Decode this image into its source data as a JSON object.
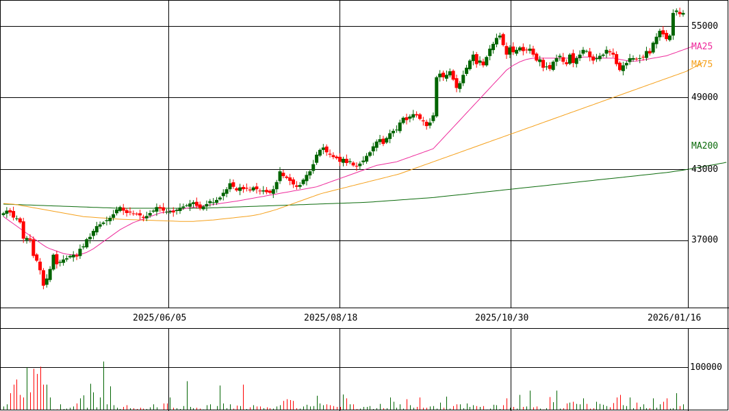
{
  "chart_data": {
    "type": "candlestick",
    "title": "",
    "price_axis": {
      "ticks": [
        55000,
        49000,
        43000,
        37000
      ],
      "range": [
        32400,
        57200
      ]
    },
    "volume_axis": {
      "ticks": [
        100000
      ],
      "range": [
        0,
        210000
      ]
    },
    "date_ticks": [
      "2025/06/05",
      "2025/08/18",
      "2025/10/30",
      "2026/01/16"
    ],
    "legend": [
      {
        "name": "MA25",
        "color": "#ee2a9b"
      },
      {
        "name": "MA75",
        "color": "#f5a01a"
      },
      {
        "name": "MA200",
        "color": "#0a6a0a"
      }
    ],
    "up_color": "#006400",
    "down_color": "#ff0000",
    "closes": [
      39280,
      39500,
      39350,
      38920,
      38850,
      38520,
      37150,
      37200,
      37050,
      35700,
      35300,
      34500,
      33200,
      33800,
      34600,
      35800,
      35000,
      35200,
      35400,
      35500,
      35700,
      35800,
      35650,
      36300,
      36500,
      37100,
      37300,
      37800,
      38200,
      38350,
      38500,
      38700,
      38900,
      39200,
      39600,
      39800,
      39500,
      39300,
      39350,
      39250,
      39200,
      39100,
      38900,
      39050,
      39300,
      39500,
      39800,
      39700,
      39500,
      39400,
      39450,
      39350,
      39550,
      39750,
      39850,
      39950,
      40100,
      40200,
      39900,
      39700,
      39850,
      40050,
      40300,
      40200,
      40400,
      40600,
      41000,
      41300,
      41800,
      41500,
      41200,
      41450,
      41300,
      41350,
      41200,
      41450,
      41300,
      41150,
      41200,
      41050,
      41000,
      41300,
      41900,
      42800,
      42400,
      42250,
      42000,
      41700,
      41500,
      41650,
      42100,
      42500,
      42800,
      43400,
      44200,
      44600,
      44800,
      44400,
      44200,
      44000,
      43900,
      43600,
      43850,
      43500,
      43650,
      43300,
      43200,
      43450,
      43700,
      44100,
      44400,
      44900,
      45300,
      45500,
      45100,
      45600,
      46000,
      46200,
      46300,
      46900,
      47300,
      47100,
      47400,
      47600,
      47500,
      47200,
      47000,
      46600,
      46900,
      47500,
      50700,
      51000,
      50700,
      50900,
      51200,
      50500,
      49800,
      50200,
      50900,
      51500,
      52100,
      52600,
      51800,
      52100,
      51700,
      52400,
      53100,
      53500,
      54000,
      54200,
      53400,
      52600,
      53200,
      52800,
      53000,
      53200,
      52900,
      53000,
      53100,
      52600,
      52100,
      52200,
      51500,
      51600,
      51400,
      52000,
      52300,
      52500,
      52000,
      51800,
      52600,
      51900,
      52300,
      52600,
      53000,
      52900,
      52400,
      52100,
      52300,
      52500,
      52600,
      53000,
      52800,
      52600,
      51800,
      51300,
      51700,
      51900,
      52300,
      52300,
      52200,
      52300,
      52400,
      52900,
      52700,
      53600,
      54100,
      54600,
      54300,
      53900,
      54200,
      56100,
      56300,
      56000,
      56100
    ],
    "volumes": [
      9000,
      14000,
      40000,
      60000,
      72000,
      36000,
      30000,
      100000,
      42000,
      97000,
      85000,
      102000,
      60000,
      60000,
      30000,
      2000,
      2500,
      14000,
      3000,
      4000,
      6000,
      9000,
      16000,
      28000,
      35000,
      6000,
      62000,
      42000,
      7000,
      30000,
      114000,
      14000,
      56000,
      12000,
      6000,
      3000,
      8000,
      12000,
      5000,
      5000,
      3000,
      6000,
      4000,
      3000,
      7000,
      14000,
      7000,
      1000,
      16000,
      16000,
      30000,
      6000,
      5000,
      3000,
      10000,
      68000,
      8000,
      5000,
      6000,
      4000,
      2000,
      12000,
      14000,
      2000,
      10000,
      58000,
      16000,
      5000,
      14000,
      4000,
      11000,
      10000,
      60000,
      3000,
      7000,
      12000,
      9000,
      9000,
      5000,
      7000,
      5000,
      4000,
      9000,
      12000,
      22000,
      26000,
      24000,
      22000,
      5000,
      4000,
      9000,
      13000,
      9000,
      10000,
      34000,
      16000,
      12000,
      14000,
      12000,
      10000,
      8000,
      8000,
      37000,
      28000,
      14000,
      14000,
      3000,
      4000,
      8000,
      8000,
      10000,
      3000,
      5000,
      15000,
      5000,
      5000,
      30000,
      20000,
      6000,
      14000,
      4000,
      26000,
      12000,
      6000,
      8000,
      30000,
      6000,
      6000,
      9000,
      10000,
      4000,
      18000,
      6000,
      32000,
      4000,
      10000,
      14000,
      14000,
      5000,
      16000,
      8000,
      12000,
      10000,
      8000,
      10000,
      2000,
      4000,
      13000,
      12000,
      3000,
      12000,
      28000,
      6000,
      8000,
      4000,
      36000,
      8000,
      9000,
      46000,
      7000,
      9000,
      4000,
      2000,
      5000,
      31000,
      19000,
      46000,
      4000,
      5000,
      16000,
      18000,
      20000,
      15000,
      14000,
      28000,
      15000,
      4000,
      5000,
      20000,
      15000,
      13000,
      10000,
      7000,
      17000,
      30000,
      36000,
      12000,
      10000,
      30000,
      5000,
      18000,
      8000,
      14000,
      5000,
      5000,
      28000,
      6000,
      14000,
      20000,
      28000,
      4000,
      5000,
      40000,
      10000,
      14000,
      6000,
      5000,
      15000,
      10000,
      22000,
      6000,
      6000,
      8000
    ],
    "ma25": [
      39000,
      38800,
      38600,
      38400,
      38200,
      38000,
      37800,
      37600,
      37400,
      37200,
      37000,
      36800,
      36600,
      36420,
      36300,
      36200,
      36100,
      36000,
      35900,
      35850,
      35820,
      35800,
      35800,
      35820,
      35900,
      36000,
      36150,
      36300,
      36500,
      36700,
      36900,
      37100,
      37300,
      37500,
      37700,
      37900,
      38050,
      38200,
      38350,
      38500,
      38600,
      38700,
      38800,
      38900,
      39000,
      39100,
      39200,
      39300,
      39350,
      39400,
      39450,
      39500,
      39550,
      39600,
      39650,
      39700,
      39740,
      39780,
      39820,
      39860,
      39900,
      39940,
      39980,
      40020,
      40060,
      40100,
      40140,
      40180,
      40220,
      40260,
      40300,
      40350,
      40400,
      40450,
      40500,
      40550,
      40600,
      40650,
      40700,
      40750,
      40800,
      40850,
      40900,
      40950,
      41000,
      41050,
      41100,
      41150,
      41200,
      41250,
      41300,
      41350,
      41400,
      41450,
      41500,
      41600,
      41700,
      41800,
      41900,
      42000,
      42100,
      42200,
      42300,
      42400,
      42500,
      42600,
      42700,
      42800,
      42900,
      43000,
      43100,
      43200,
      43300,
      43350,
      43400,
      43450,
      43500,
      43550,
      43600,
      43700,
      43800,
      43900,
      44000,
      44100,
      44200,
      44300,
      44400,
      44500,
      44600,
      44700,
      45000,
      45300,
      45600,
      45900,
      46200,
      46500,
      46800,
      47100,
      47400,
      47700,
      48000,
      48300,
      48600,
      48900,
      49200,
      49500,
      49800,
      50100,
      50400,
      50700,
      51000,
      51300,
      51500,
      51700,
      51850,
      52000,
      52100,
      52200,
      52250,
      52300,
      52300,
      52300,
      52300,
      52300,
      52300,
      52300,
      52300,
      52300,
      52300,
      52300,
      52300,
      52300,
      52300,
      52350,
      52400,
      52400,
      52400,
      52400,
      52350,
      52300,
      52300,
      52300,
      52300,
      52300,
      52250,
      52200,
      52150,
      52100,
      52050,
      52050,
      52050,
      52100,
      52150,
      52200,
      52250,
      52300,
      52350,
      52400,
      52450,
      52500,
      52600,
      52700,
      52800,
      52900,
      53000,
      53100,
      53200,
      53300
    ],
    "ma75": [
      40100,
      40080,
      40060,
      40040,
      40000,
      39950,
      39900,
      39850,
      39800,
      39750,
      39700,
      39650,
      39600,
      39550,
      39500,
      39450,
      39400,
      39350,
      39300,
      39250,
      39200,
      39150,
      39100,
      39050,
      39000,
      38980,
      38960,
      38940,
      38920,
      38900,
      38880,
      38860,
      38840,
      38820,
      38800,
      38780,
      38770,
      38760,
      38750,
      38740,
      38730,
      38720,
      38710,
      38700,
      38690,
      38680,
      38670,
      38660,
      38650,
      38640,
      38630,
      38620,
      38610,
      38600,
      38600,
      38600,
      38600,
      38600,
      38620,
      38640,
      38660,
      38680,
      38700,
      38720,
      38750,
      38780,
      38810,
      38840,
      38870,
      38900,
      38930,
      38960,
      38990,
      39020,
      39060,
      39100,
      39150,
      39200,
      39280,
      39360,
      39440,
      39520,
      39600,
      39700,
      39800,
      39900,
      40000,
      40100,
      40200,
      40300,
      40400,
      40500,
      40600,
      40700,
      40800,
      40900,
      40980,
      41050,
      41120,
      41190,
      41260,
      41330,
      41400,
      41470,
      41540,
      41610,
      41680,
      41750,
      41820,
      41890,
      41960,
      42030,
      42100,
      42170,
      42240,
      42310,
      42380,
      42450,
      42520,
      42600,
      42700,
      42800,
      42900,
      43000,
      43100,
      43200,
      43300,
      43400,
      43500,
      43600,
      43700,
      43800,
      43900,
      44000,
      44100,
      44200,
      44300,
      44400,
      44500,
      44600,
      44700,
      44800,
      44900,
      45000,
      45100,
      45200,
      45300,
      45400,
      45500,
      45600,
      45700,
      45800,
      45900,
      46000,
      46100,
      46200,
      46300,
      46400,
      46500,
      46600,
      46700,
      46800,
      46900,
      47000,
      47100,
      47200,
      47300,
      47400,
      47500,
      47600,
      47700,
      47800,
      47900,
      48000,
      48100,
      48200,
      48300,
      48400,
      48500,
      48600,
      48700,
      48800,
      48900,
      49000,
      49100,
      49200,
      49300,
      49400,
      49500,
      49600,
      49700,
      49800,
      49900,
      50000,
      50100,
      50200,
      50300,
      50400,
      50500,
      50600,
      50700,
      50800,
      50900,
      51000,
      51100,
      51200,
      51350,
      51500,
      51650,
      51800,
      51950
    ],
    "ma200": [
      40050,
      40040,
      40030,
      40020,
      40010,
      40000,
      39990,
      39980,
      39970,
      39960,
      39950,
      39940,
      39930,
      39920,
      39910,
      39900,
      39890,
      39880,
      39870,
      39860,
      39850,
      39840,
      39830,
      39820,
      39810,
      39800,
      39790,
      39780,
      39770,
      39760,
      39750,
      39740,
      39730,
      39720,
      39710,
      39700,
      39700,
      39700,
      39700,
      39700,
      39700,
      39700,
      39700,
      39700,
      39700,
      39700,
      39700,
      39700,
      39700,
      39700,
      39700,
      39700,
      39700,
      39700,
      39700,
      39700,
      39700,
      39700,
      39700,
      39700,
      39710,
      39720,
      39730,
      39740,
      39750,
      39760,
      39770,
      39780,
      39790,
      39800,
      39810,
      39820,
      39830,
      39840,
      39850,
      39860,
      39870,
      39880,
      39890,
      39900,
      39910,
      39920,
      39930,
      39940,
      39950,
      39960,
      39970,
      39980,
      39990,
      40000,
      40010,
      40020,
      40030,
      40040,
      40050,
      40060,
      40070,
      40080,
      40090,
      40100,
      40110,
      40120,
      40130,
      40140,
      40150,
      40160,
      40170,
      40180,
      40190,
      40200,
      40220,
      40240,
      40260,
      40280,
      40300,
      40320,
      40340,
      40360,
      40380,
      40400,
      40420,
      40440,
      40460,
      40480,
      40500,
      40520,
      40540,
      40560,
      40580,
      40600,
      40630,
      40660,
      40690,
      40720,
      40750,
      40780,
      40810,
      40840,
      40870,
      40900,
      40930,
      40960,
      40990,
      41020,
      41050,
      41080,
      41110,
      41140,
      41170,
      41200,
      41230,
      41260,
      41290,
      41320,
      41350,
      41380,
      41410,
      41440,
      41470,
      41500,
      41530,
      41560,
      41590,
      41620,
      41650,
      41680,
      41710,
      41740,
      41770,
      41800,
      41830,
      41860,
      41890,
      41920,
      41950,
      41980,
      42010,
      42040,
      42070,
      42100,
      42130,
      42160,
      42190,
      42220,
      42250,
      42280,
      42310,
      42340,
      42370,
      42400,
      42430,
      42460,
      42490,
      42520,
      42550,
      42580,
      42610,
      42640,
      42670,
      42700,
      42740,
      42780,
      42820,
      42860,
      42900,
      42950,
      43000,
      43050,
      43100,
      43150,
      43200,
      43250,
      43300,
      43350,
      43400,
      43450,
      43500,
      43560
    ]
  }
}
